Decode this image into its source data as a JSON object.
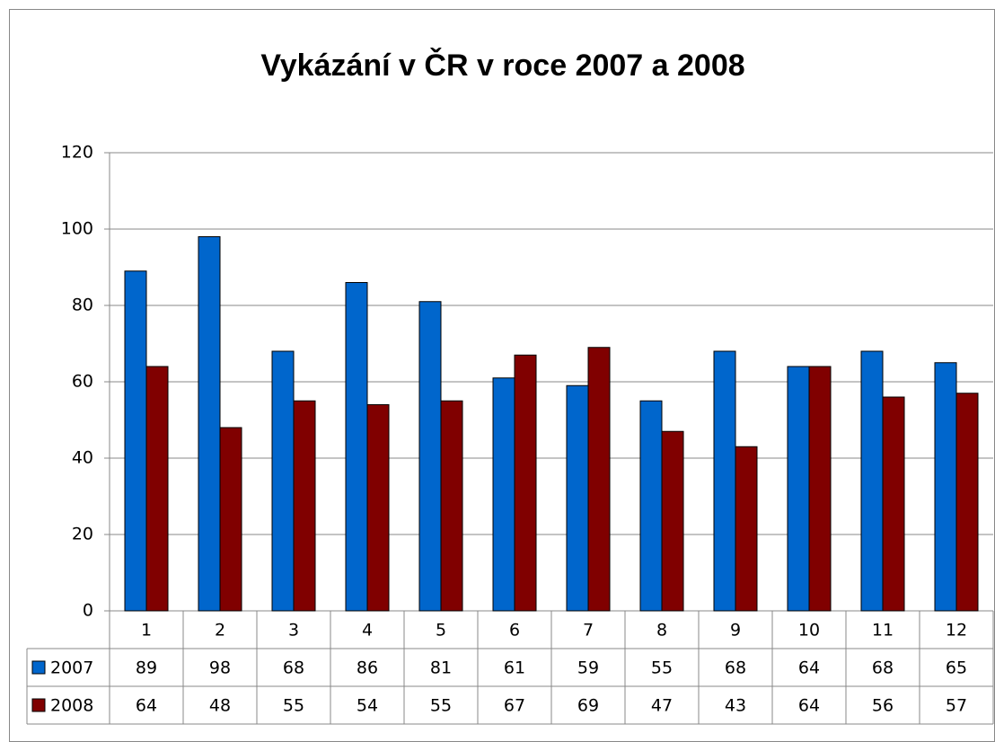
{
  "chart_data": {
    "type": "bar",
    "title": "Vykázání v ČR v roce 2007 a 2008",
    "categories": [
      "1",
      "2",
      "3",
      "4",
      "5",
      "6",
      "7",
      "8",
      "9",
      "10",
      "11",
      "12"
    ],
    "series": [
      {
        "name": "2007",
        "color": "#0066cc",
        "values": [
          89,
          98,
          68,
          86,
          81,
          61,
          59,
          55,
          68,
          64,
          68,
          65
        ]
      },
      {
        "name": "2008",
        "color": "#800000",
        "values": [
          64,
          48,
          55,
          54,
          55,
          67,
          69,
          47,
          43,
          64,
          56,
          57
        ]
      }
    ],
    "ylim": [
      0,
      120
    ],
    "yticks": [
      0,
      20,
      40,
      60,
      80,
      100,
      120
    ],
    "grid": true
  }
}
